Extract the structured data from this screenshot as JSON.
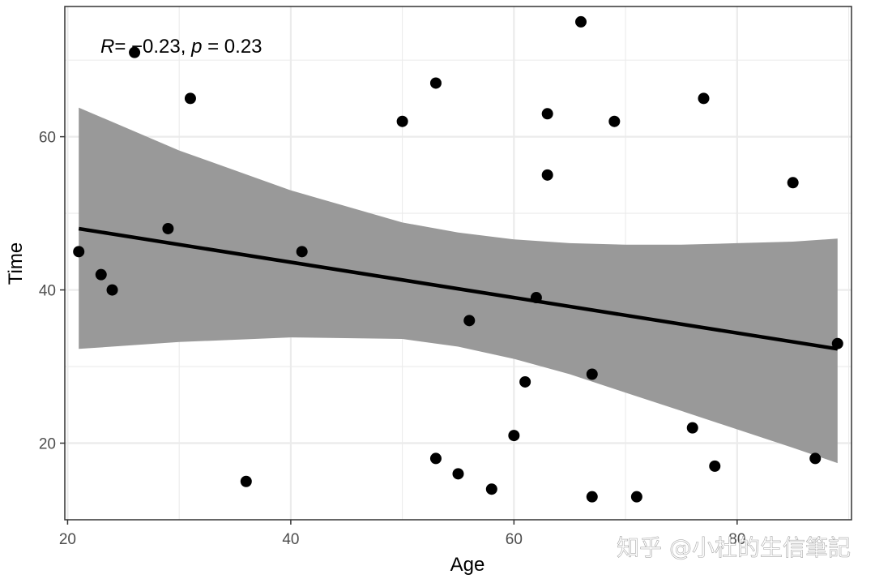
{
  "chart_data": {
    "type": "scatter",
    "title": "",
    "xlabel": "Age",
    "ylabel": "Time",
    "xlim": [
      19.75,
      90.25
    ],
    "ylim": [
      10.0,
      77.0
    ],
    "x_ticks": [
      20,
      40,
      60,
      80
    ],
    "y_ticks": [
      20,
      40,
      60
    ],
    "grid": true,
    "annotation": {
      "r_label": "R",
      "r_value": "= −0.23, ",
      "p_label": "p",
      "p_value": " = 0.23"
    },
    "points": [
      {
        "x": 21,
        "y": 45
      },
      {
        "x": 23,
        "y": 42
      },
      {
        "x": 24,
        "y": 40
      },
      {
        "x": 26,
        "y": 71
      },
      {
        "x": 29,
        "y": 48
      },
      {
        "x": 31,
        "y": 65
      },
      {
        "x": 36,
        "y": 15
      },
      {
        "x": 41,
        "y": 45
      },
      {
        "x": 50,
        "y": 62
      },
      {
        "x": 53,
        "y": 67
      },
      {
        "x": 53,
        "y": 18
      },
      {
        "x": 55,
        "y": 16
      },
      {
        "x": 56,
        "y": 36
      },
      {
        "x": 58,
        "y": 14
      },
      {
        "x": 60,
        "y": 21
      },
      {
        "x": 61,
        "y": 28
      },
      {
        "x": 62,
        "y": 39
      },
      {
        "x": 63,
        "y": 63
      },
      {
        "x": 63,
        "y": 55
      },
      {
        "x": 66,
        "y": 75
      },
      {
        "x": 67,
        "y": 29
      },
      {
        "x": 67,
        "y": 13
      },
      {
        "x": 69,
        "y": 62
      },
      {
        "x": 71,
        "y": 13
      },
      {
        "x": 76,
        "y": 22
      },
      {
        "x": 77,
        "y": 65
      },
      {
        "x": 78,
        "y": 17
      },
      {
        "x": 85,
        "y": 54
      },
      {
        "x": 87,
        "y": 18
      },
      {
        "x": 89,
        "y": 33
      }
    ],
    "regression": {
      "x_start": 21,
      "y_start": 48,
      "x_end": 89,
      "y_end": 32.3
    },
    "confidence_band": {
      "x": [
        21,
        30,
        40,
        50,
        55,
        60,
        65,
        70,
        75,
        80,
        85,
        89
      ],
      "upper": [
        63.8,
        58.2,
        53.0,
        48.8,
        47.5,
        46.6,
        46.1,
        45.9,
        45.9,
        46.1,
        46.3,
        46.7
      ],
      "lower": [
        32.3,
        33.2,
        33.8,
        33.6,
        32.6,
        31.0,
        29.0,
        26.6,
        24.2,
        21.8,
        19.4,
        17.4
      ]
    },
    "colors": {
      "band": "#999999",
      "line": "#000000",
      "points": "#000000",
      "grid": "#ebebeb",
      "panel_border": "#333333"
    }
  },
  "watermark": "知乎 @小杜的生信筆記"
}
